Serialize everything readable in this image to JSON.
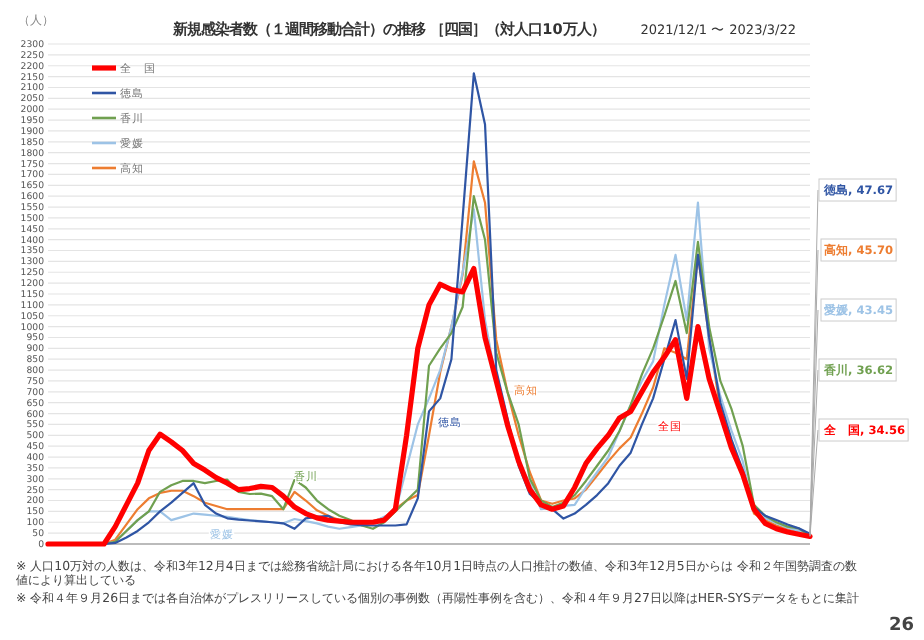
{
  "chart_data": {
    "type": "line",
    "title": "新規感染者数（１週間移動合計）の推移 ［四国］（対人口10万人）",
    "subtitle": "2021/12/1 〜 2023/3/22",
    "ylabel": "（人）",
    "categories": [
      null,
      null,
      null,
      null,
      null,
      null,
      null,
      null,
      null,
      null,
      null,
      null,
      null,
      null,
      null,
      null,
      null,
      null,
      null,
      null,
      null,
      null,
      null,
      null,
      null,
      null,
      null,
      null,
      null,
      null,
      null,
      null,
      null,
      null,
      null,
      null,
      null,
      null,
      null,
      null,
      null,
      null,
      null,
      null,
      null,
      null,
      null,
      null,
      null,
      null,
      null,
      null,
      null,
      null,
      null,
      null,
      null,
      null,
      null,
      null,
      null,
      null,
      null,
      null,
      null,
      null,
      null,
      null,
      null
    ],
    "ylim": [
      0,
      2300
    ],
    "yticks": [
      0,
      50,
      100,
      150,
      200,
      250,
      300,
      350,
      400,
      450,
      500,
      550,
      600,
      650,
      700,
      750,
      800,
      850,
      900,
      950,
      1000,
      1050,
      1100,
      1150,
      1200,
      1250,
      1300,
      1350,
      1400,
      1450,
      1500,
      1550,
      1600,
      1650,
      1700,
      1750,
      1800,
      1850,
      1900,
      1950,
      2000,
      2050,
      2100,
      2150,
      2200,
      2250,
      2300
    ],
    "tick_labels": "y",
    "grid": "y",
    "legend": "top left",
    "line_style": "solid",
    "marker": "none",
    "series": [
      {
        "name": "全　国",
        "color": "#ff0000",
        "values": [
          0,
          0,
          0,
          0,
          0,
          0,
          80,
          180,
          280,
          430,
          505,
          470,
          430,
          370,
          340,
          305,
          280,
          250,
          255,
          265,
          260,
          220,
          170,
          140,
          120,
          110,
          105,
          100,
          100,
          100,
          110,
          160,
          500,
          900,
          1100,
          1195,
          1170,
          1160,
          1267,
          950,
          750,
          548,
          380,
          250,
          180,
          160,
          175,
          260,
          370,
          440,
          500,
          580,
          610,
          700,
          790,
          860,
          940,
          670,
          1000,
          760,
          600,
          440,
          320,
          160,
          95,
          70,
          55,
          45,
          34.56
        ]
      },
      {
        "name": "徳島",
        "color": "#2f55a4",
        "values": [
          null,
          null,
          null,
          null,
          0,
          0,
          5,
          30,
          60,
          100,
          150,
          190,
          235,
          280,
          180,
          140,
          118,
          112,
          108,
          104,
          100,
          95,
          70,
          118,
          125,
          130,
          100,
          90,
          87,
          85,
          85,
          85,
          90,
          210,
          610,
          670,
          850,
          1500,
          2165,
          1930,
          800,
          580,
          360,
          230,
          185,
          160,
          117,
          140,
          180,
          225,
          280,
          360,
          420,
          550,
          670,
          850,
          1030,
          760,
          1330,
          950,
          650,
          480,
          340,
          170,
          130,
          110,
          90,
          72,
          47.67
        ]
      },
      {
        "name": "香川",
        "color": "#70a050",
        "values": [
          null,
          null,
          null,
          null,
          0,
          0,
          10,
          60,
          110,
          150,
          240,
          270,
          290,
          290,
          280,
          290,
          296,
          240,
          230,
          232,
          220,
          160,
          296,
          260,
          200,
          160,
          130,
          110,
          85,
          70,
          100,
          150,
          200,
          250,
          820,
          900,
          970,
          1090,
          1600,
          1400,
          880,
          700,
          550,
          300,
          200,
          170,
          190,
          225,
          290,
          360,
          430,
          520,
          640,
          780,
          900,
          1050,
          1210,
          970,
          1390,
          1000,
          750,
          620,
          450,
          180,
          130,
          100,
          80,
          72,
          36.62
        ]
      },
      {
        "name": "愛媛",
        "color": "#9dc3e6",
        "values": [
          null,
          null,
          null,
          null,
          0,
          0,
          10,
          60,
          110,
          150,
          150,
          110,
          125,
          140,
          135,
          130,
          125,
          117,
          110,
          105,
          100,
          95,
          115,
          105,
          95,
          80,
          70,
          78,
          85,
          100,
          125,
          150,
          350,
          550,
          670,
          800,
          1000,
          1250,
          1540,
          1030,
          750,
          550,
          380,
          280,
          160,
          165,
          175,
          180,
          260,
          330,
          400,
          520,
          640,
          750,
          840,
          1100,
          1330,
          1030,
          1570,
          900,
          680,
          520,
          380,
          150,
          120,
          95,
          75,
          60,
          43.45
        ]
      },
      {
        "name": "高知",
        "color": "#ed7d31",
        "values": [
          null,
          null,
          null,
          null,
          0,
          0,
          20,
          90,
          160,
          210,
          235,
          245,
          245,
          220,
          190,
          175,
          160,
          160,
          160,
          160,
          160,
          160,
          240,
          200,
          155,
          130,
          110,
          105,
          105,
          105,
          120,
          160,
          200,
          225,
          500,
          790,
          1000,
          1240,
          1760,
          1570,
          940,
          700,
          500,
          330,
          200,
          185,
          200,
          210,
          250,
          315,
          380,
          440,
          490,
          600,
          720,
          900,
          880,
          850,
          1330,
          950,
          620,
          450,
          330,
          140,
          110,
          85,
          70,
          60,
          45.7
        ]
      }
    ],
    "annotations": [
      "徳島",
      "高知",
      "全国",
      "香川",
      "愛媛",
      "徳島, 47.67",
      "高知, 45.70",
      "愛媛, 43.45",
      "香川, 36.62",
      "全　国, 34.56",
      "※ 人口10万対の人数は、令和3年12月4日までは総務省統計局における各年10月1日時点の人口推計の数値、令和3年12月5日からは 令和２年国勢調査の数値により算出している",
      "※ 令和４年９月26日までは各自治体がプレスリリースしている個別の事例数（再陽性事例を含む）、令和４年９月27日以降はHER-SYSデータをもとに集計",
      "26"
    ]
  }
}
